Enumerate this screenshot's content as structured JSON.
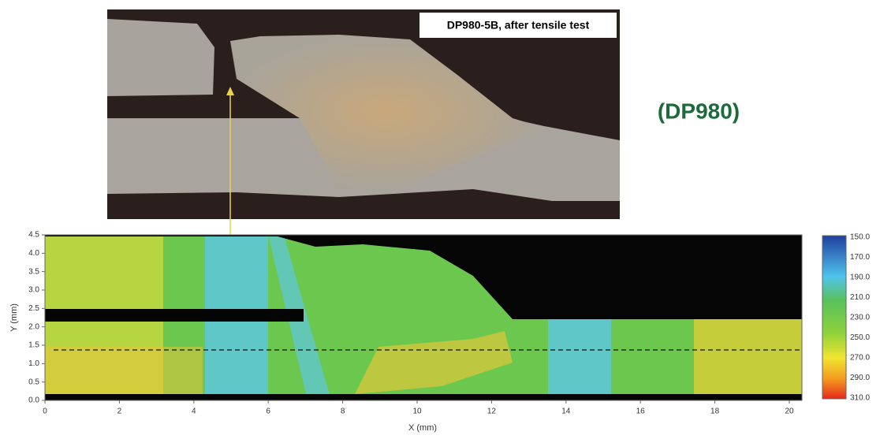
{
  "photo": {
    "label": "DP980-5B, after tensile test"
  },
  "material_label": "(DP980)",
  "map": {
    "x_axis_title": "X (mm)",
    "y_axis_title": "Y (mm)",
    "x_ticks": [
      "0",
      "2",
      "4",
      "6",
      "8",
      "10",
      "12",
      "14",
      "16",
      "18",
      "20"
    ],
    "y_ticks": [
      "0.0",
      "0.5",
      "1.0",
      "1.5",
      "2.0",
      "2.5",
      "3.0",
      "3.5",
      "4.0",
      "4.5"
    ],
    "colorbar_ticks": [
      "150.0",
      "170.0",
      "190.0",
      "210.0",
      "230.0",
      "250.0",
      "270.0",
      "290.0",
      "310.0"
    ]
  }
}
